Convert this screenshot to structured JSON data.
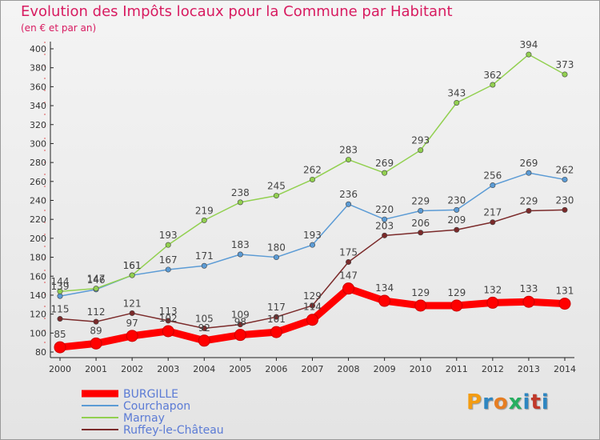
{
  "title": "Evolution des Impôts locaux pour la Commune par Habitant",
  "subtitle": "(en € et par an)",
  "logo": {
    "text": "Proxiti",
    "colors": [
      "#f39c12",
      "#2e86c1",
      "#e67e22",
      "#27ae60",
      "#2e86c1",
      "#c0392b",
      "#2e86c1"
    ]
  },
  "chart_data": {
    "type": "line",
    "title": "Evolution des Impôts locaux pour la Commune par Habitant",
    "subtitle": "(en € et par an)",
    "x": [
      2000,
      2001,
      2002,
      2003,
      2004,
      2005,
      2006,
      2007,
      2008,
      2009,
      2010,
      2011,
      2012,
      2013,
      2014
    ],
    "ylim": [
      80,
      400
    ],
    "yticks": [
      80,
      100,
      120,
      140,
      160,
      180,
      200,
      220,
      240,
      260,
      280,
      300,
      320,
      340,
      360,
      380,
      400
    ],
    "grid": false,
    "legend": "bottom-left",
    "series": [
      {
        "name": "BURGILLE",
        "color": "#ff0000",
        "values": [
          85,
          89,
          97,
          102,
          92,
          98,
          101,
          114,
          147,
          134,
          129,
          129,
          132,
          133,
          131
        ]
      },
      {
        "name": "Courchapon",
        "color": "#5b9bd5",
        "values": [
          139,
          146,
          161,
          167,
          171,
          183,
          180,
          193,
          236,
          220,
          229,
          230,
          256,
          269,
          262
        ]
      },
      {
        "name": "Marnay",
        "color": "#92d050",
        "values": [
          144,
          147,
          161,
          193,
          219,
          238,
          245,
          262,
          283,
          269,
          293,
          343,
          362,
          394,
          373
        ]
      },
      {
        "name": "Ruffey-le-Château",
        "color": "#7b2a2a",
        "values": [
          115,
          112,
          121,
          113,
          105,
          109,
          117,
          129,
          175,
          203,
          206,
          209,
          217,
          229,
          230
        ]
      }
    ]
  }
}
